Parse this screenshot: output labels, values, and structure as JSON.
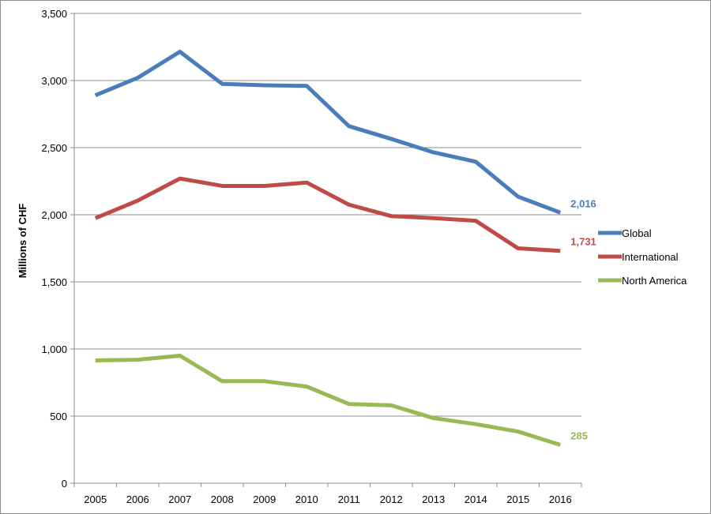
{
  "chart_data": {
    "type": "line",
    "title": "",
    "xlabel": "",
    "ylabel": "Millions of CHF",
    "x": [
      "2005",
      "2006",
      "2007",
      "2008",
      "2009",
      "2010",
      "2011",
      "2012",
      "2013",
      "2014",
      "2015",
      "2016"
    ],
    "ylim": [
      0,
      3500
    ],
    "yticks": [
      0,
      500,
      1000,
      1500,
      2000,
      2500,
      3000,
      3500
    ],
    "ytick_labels": [
      "0",
      "500",
      "1,000",
      "1,500",
      "2,000",
      "2,500",
      "3,000",
      "3,500"
    ],
    "grid": "horizontal",
    "legend_position": "right",
    "series": [
      {
        "name": "Global",
        "color": "#4a7ebb",
        "values": [
          2890,
          3020,
          3215,
          2975,
          2965,
          2960,
          2660,
          2565,
          2465,
          2395,
          2135,
          2016
        ],
        "end_label": "2,016"
      },
      {
        "name": "International",
        "color": "#be4b48",
        "values": [
          1975,
          2105,
          2270,
          2215,
          2215,
          2240,
          2075,
          1990,
          1975,
          1955,
          1750,
          1731
        ],
        "end_label": "1,731"
      },
      {
        "name": "North America",
        "color": "#98b954",
        "values": [
          915,
          920,
          950,
          760,
          760,
          720,
          590,
          580,
          485,
          440,
          385,
          285
        ],
        "end_label": "285"
      }
    ]
  }
}
